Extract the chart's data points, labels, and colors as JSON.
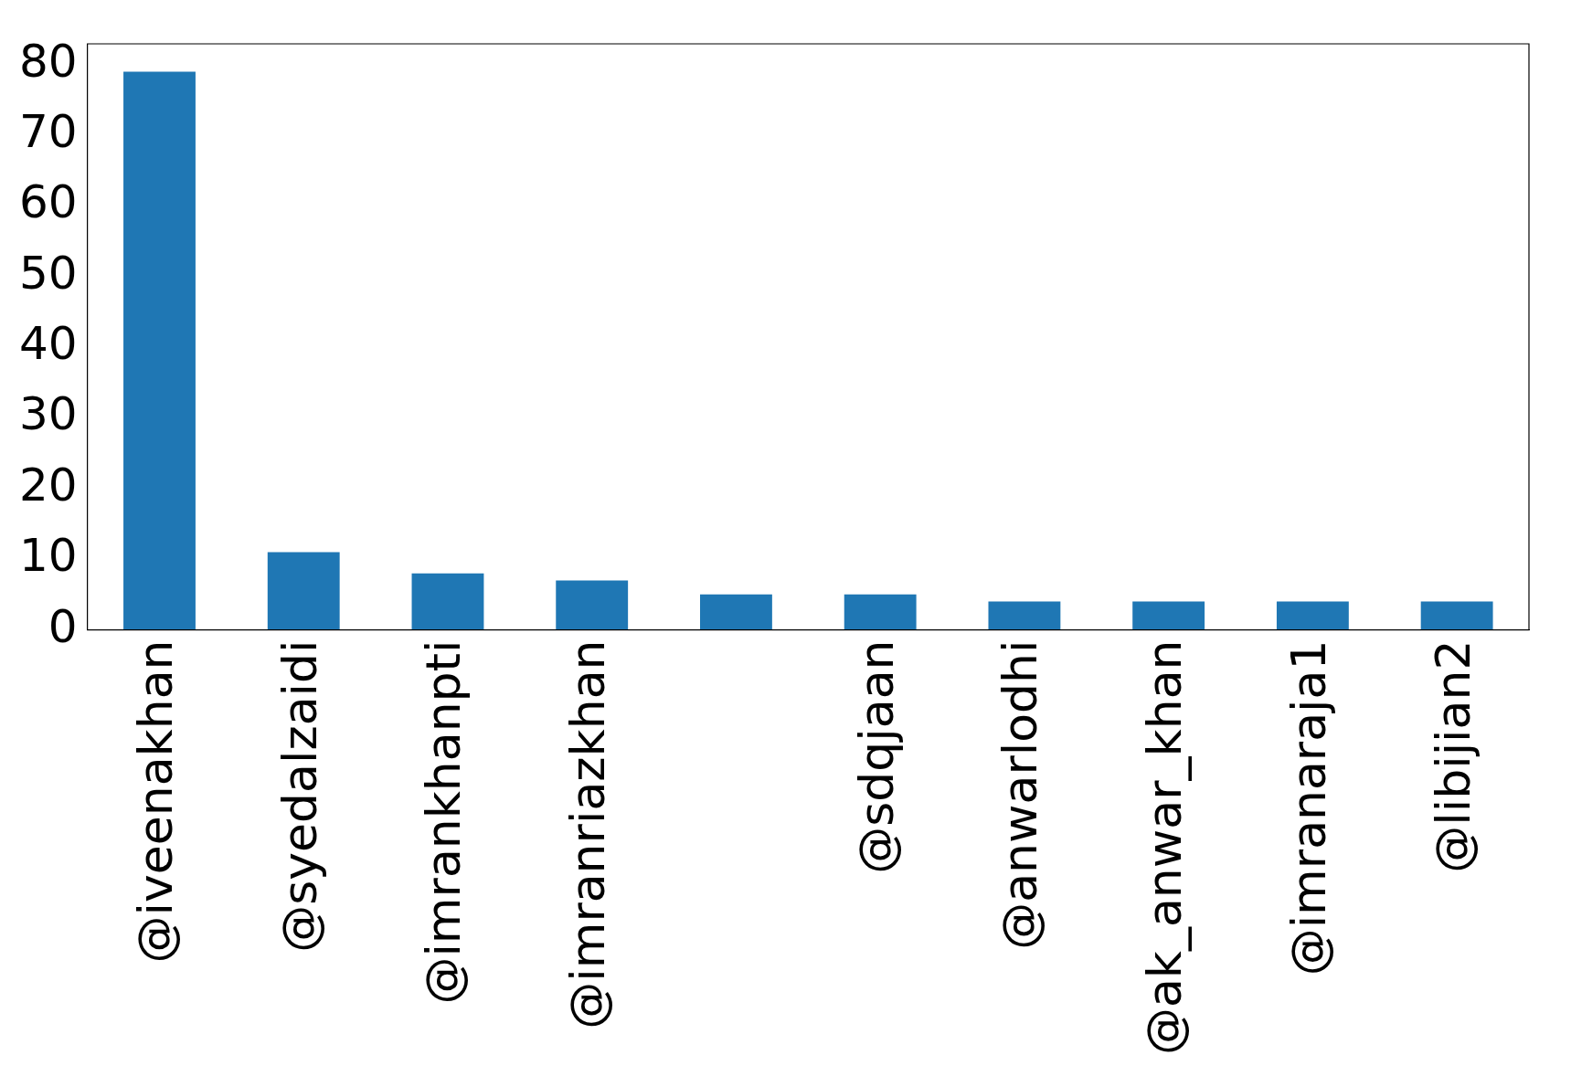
{
  "chart_data": {
    "type": "bar",
    "categories": [
      "@iveenakhan",
      "@syedalzaidi",
      "@imrankhanpti",
      "@imranriazkhan",
      null,
      "@sdqjaan",
      "@anwarlodhi",
      "@ak_anwar_khan",
      "@imranaraja1",
      "@libijian2"
    ],
    "values": [
      79,
      11,
      8,
      7,
      5,
      5,
      4,
      4,
      4,
      4
    ],
    "color": "#1f77b4",
    "ylim": [
      0,
      82.95
    ],
    "yticks": [
      0,
      10,
      20,
      30,
      40,
      50,
      60,
      70,
      80
    ],
    "grid": false,
    "legend": false
  }
}
